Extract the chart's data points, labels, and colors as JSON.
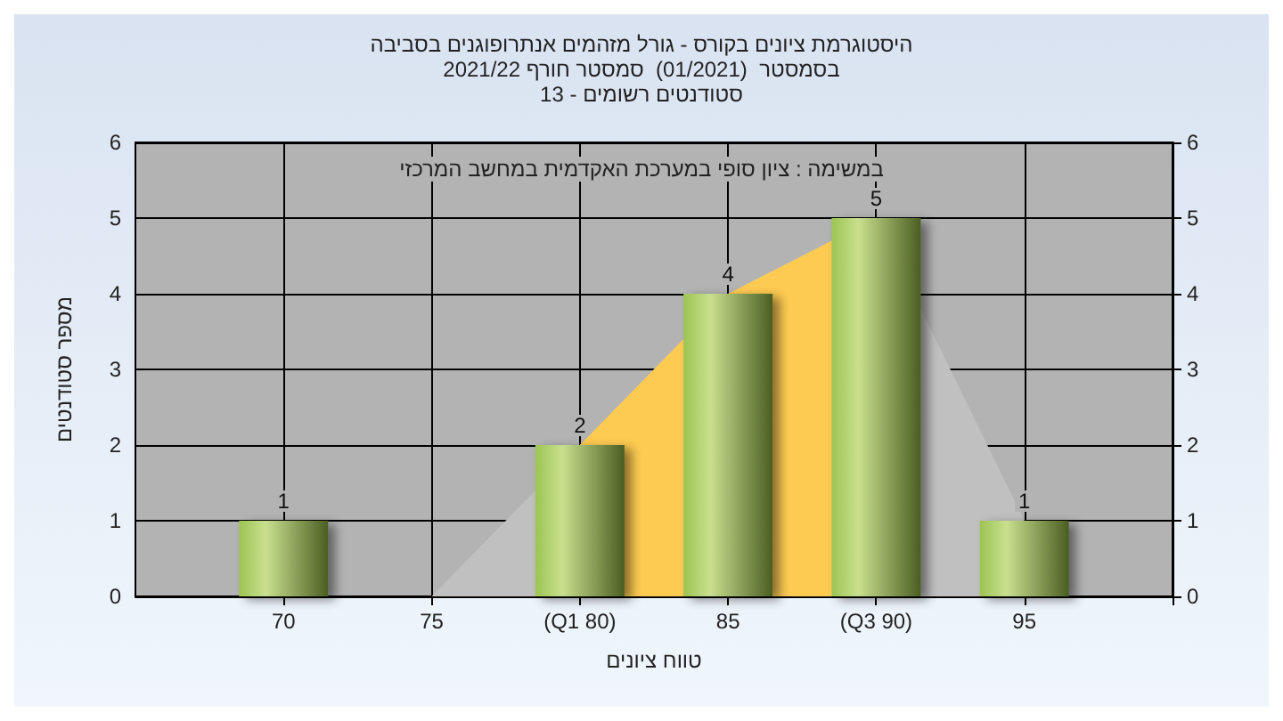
{
  "chart_data": {
    "type": "bar",
    "title": "היסטוגרמת ציונים בקורס - גורל מזהמים אנתרופוגנים בסביבה",
    "subtitle": "בסמסטר  (01/2021)  סמסטר חורף 2021/22\nסטודנטים רשומים - 13",
    "xlabel": "טווח ציונים",
    "ylabel": "מספר סטודנטים",
    "annotations": [
      "במשימה : ציון סופי במערכת האקדמית במחשב המרכזי"
    ],
    "categories": [
      "70",
      "75",
      "(Q1 80)",
      "85",
      "(Q3 90)",
      "95"
    ],
    "series": [
      {
        "type": "area",
        "color": "#c0c0c0",
        "values": [
          null,
          0,
          2,
          4,
          5,
          1
        ]
      },
      {
        "type": "area",
        "color": "#fecb52",
        "values": [
          null,
          null,
          2,
          4,
          5,
          null
        ]
      },
      {
        "color": "#9cc453",
        "values": [
          1,
          0,
          2,
          4,
          5,
          1
        ],
        "value_labels": [
          "1",
          null,
          "2",
          "4",
          "5",
          "1"
        ]
      }
    ],
    "ylim": [
      0,
      6
    ],
    "yticks": [
      0,
      1,
      2,
      3,
      4,
      5,
      6
    ],
    "y2lim": [
      0,
      6
    ],
    "y2ticks": [
      0,
      1,
      2,
      3,
      4,
      5,
      6
    ],
    "grid": true
  }
}
